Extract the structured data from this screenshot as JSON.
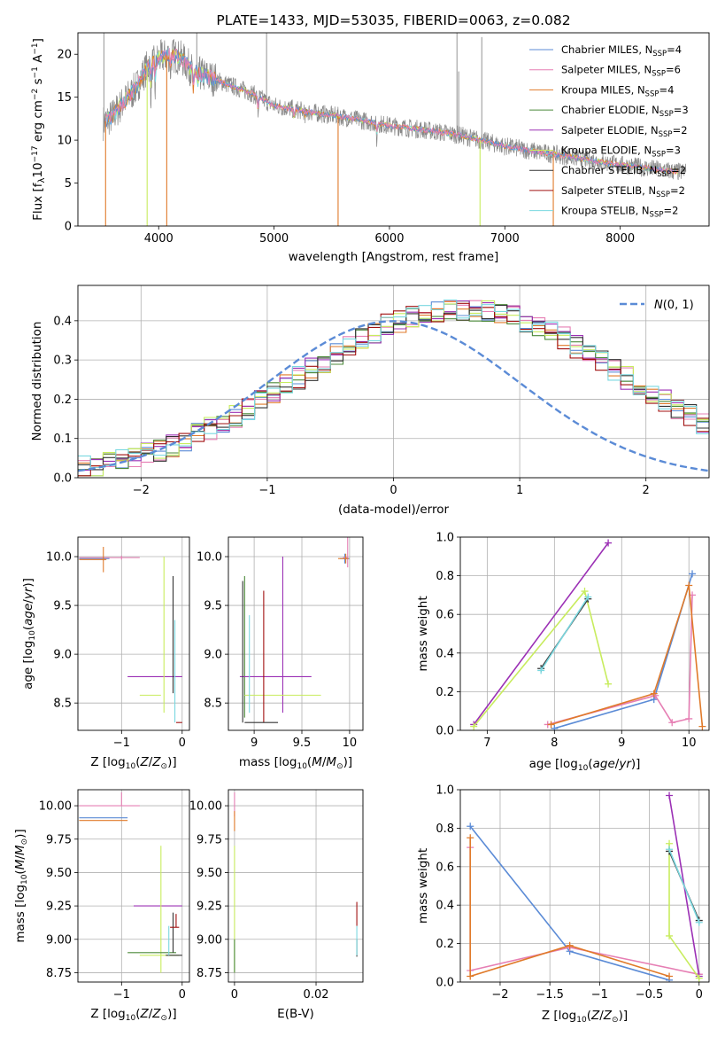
{
  "colors": {
    "chabrier_miles": "#5b8bd6",
    "salpeter_miles": "#e67fb4",
    "kroupa_miles": "#e07a2a",
    "chabrier_elodie": "#4c8a3a",
    "salpeter_elodie": "#9b30b5",
    "kroupa_elodie": "#c8ec5e",
    "chabrier_stelib": "#333333",
    "salpeter_stelib": "#a01010",
    "kroupa_stelib": "#7ad8e0",
    "data": "#888888",
    "normal": "#5b8bd6"
  },
  "chart_data": [
    {
      "id": "spectrum",
      "type": "line",
      "title": "PLATE=1433, MJD=53035, FIBERID=0063, z=0.082",
      "xlabel": "wavelength [Angstrom, rest frame]",
      "ylabel": "Flux [fλ10^-17 erg cm^-2 s^-1 A^-1]",
      "xlim": [
        3300,
        8770
      ],
      "ylim": [
        0,
        22.5
      ],
      "xticks": [
        4000,
        5000,
        6000,
        7000,
        8000
      ],
      "yticks": [
        0,
        5,
        10,
        15,
        20
      ],
      "legend_position": "top-right",
      "continuum": {
        "x": [
          3520,
          3600,
          3700,
          3800,
          3900,
          4000,
          4100,
          4200,
          4300,
          4500,
          4800,
          5000,
          5300,
          5600,
          6000,
          6300,
          6600,
          7000,
          7300,
          7600,
          7900,
          8200,
          8500
        ],
        "y": [
          12.0,
          12.8,
          14.5,
          16.0,
          18.5,
          19.5,
          20.0,
          19.5,
          18.0,
          17.0,
          15.5,
          14.0,
          13.3,
          12.7,
          11.7,
          11.2,
          10.6,
          9.3,
          8.6,
          8.0,
          7.3,
          6.8,
          6.3
        ]
      },
      "legend": [
        {
          "name": "Chabrier MILES",
          "nssp": "4",
          "color_key": "chabrier_miles"
        },
        {
          "name": "Salpeter MILES",
          "nssp": "6",
          "color_key": "salpeter_miles"
        },
        {
          "name": "Kroupa MILES",
          "nssp": "4",
          "color_key": "kroupa_miles"
        },
        {
          "name": "Chabrier ELODIE",
          "nssp": "3",
          "color_key": "chabrier_elodie"
        },
        {
          "name": "Salpeter ELODIE",
          "nssp": "2",
          "color_key": "salpeter_elodie"
        },
        {
          "name": "Kroupa ELODIE",
          "nssp": "3",
          "color_key": "kroupa_elodie"
        },
        {
          "name": "Chabrier STELIB",
          "nssp": "2",
          "color_key": "chabrier_stelib"
        },
        {
          "name": "Salpeter STELIB",
          "nssp": "2",
          "color_key": "salpeter_stelib"
        },
        {
          "name": "Kroupa STELIB",
          "nssp": "2",
          "color_key": "kroupa_stelib"
        }
      ]
    },
    {
      "id": "residuals",
      "type": "histogram",
      "xlabel": "(data-model)/error",
      "ylabel": "Normed distribution",
      "xlim": [
        -2.5,
        2.5
      ],
      "ylim": [
        0,
        0.49
      ],
      "xticks": [
        -2,
        -1,
        0,
        1,
        2
      ],
      "yticks": [
        0.0,
        0.1,
        0.2,
        0.3,
        0.4
      ],
      "grid": true,
      "normal_curve_label": "N(0,1)",
      "legend_position": "top-right",
      "bin_width": 0.1,
      "x_start": -2.5,
      "hist_base": [
        0.028,
        0.03,
        0.036,
        0.042,
        0.05,
        0.06,
        0.07,
        0.082,
        0.095,
        0.11,
        0.125,
        0.14,
        0.158,
        0.175,
        0.195,
        0.215,
        0.235,
        0.255,
        0.275,
        0.295,
        0.315,
        0.335,
        0.355,
        0.372,
        0.388,
        0.4,
        0.41,
        0.418,
        0.424,
        0.428,
        0.43,
        0.428,
        0.424,
        0.418,
        0.41,
        0.4,
        0.388,
        0.372,
        0.355,
        0.335,
        0.315,
        0.295,
        0.275,
        0.255,
        0.235,
        0.215,
        0.195,
        0.175,
        0.158,
        0.14,
        0.125,
        0.11,
        0.095,
        0.082,
        0.07,
        0.06,
        0.05,
        0.042,
        0.036,
        0.03
      ],
      "hist_base_note_units": "normed density per 0.1-wide bin from -2.5 to 2.5 (first 50 used)"
    },
    {
      "id": "age_vs_Z",
      "type": "errorbar",
      "xlabel": "Z [log10(Z/Z⊙)]",
      "ylabel": "age [log10(age/yr)]",
      "xlim": [
        -1.72,
        0.12
      ],
      "ylim": [
        8.22,
        10.2
      ],
      "xticks": [
        -1,
        0
      ],
      "yticks": [
        8.5,
        9.0,
        9.5,
        10.0
      ],
      "grid": true,
      "points": [
        {
          "color_key": "chabrier_miles",
          "x": -1.3,
          "y": 9.98,
          "xerr": [
            0.4,
            0.1
          ],
          "yerr": [
            0.02,
            0.02
          ]
        },
        {
          "color_key": "salpeter_miles",
          "x": -1.0,
          "y": 9.99,
          "xerr": [
            0.7,
            0.3
          ],
          "yerr": [
            0.02,
            0.02
          ]
        },
        {
          "color_key": "kroupa_miles",
          "x": -1.3,
          "y": 9.97,
          "xerr": [
            0.4,
            0.05
          ],
          "yerr": [
            0.13,
            0.13
          ]
        },
        {
          "color_key": "chabrier_elodie",
          "x": -0.3,
          "y": 8.58,
          "xerr": [
            0.0,
            0.0
          ],
          "yerr": [
            0.0,
            0.0
          ]
        },
        {
          "color_key": "salpeter_elodie",
          "x": -0.4,
          "y": 8.77,
          "xerr": [
            0.5,
            0.4
          ],
          "yerr": [
            0.0,
            0.0
          ]
        },
        {
          "color_key": "kroupa_elodie",
          "x": -0.7,
          "y": 8.58,
          "xerr": [
            0.0,
            0.35
          ],
          "yerr": [
            0.0,
            0.0
          ]
        },
        {
          "color_key": "kroupa_elodie",
          "x": -0.3,
          "y": 9.0,
          "xerr": [
            0.0,
            0.0
          ],
          "yerr": [
            0.6,
            1.0
          ]
        },
        {
          "color_key": "chabrier_stelib",
          "x": -0.15,
          "y": 9.2,
          "xerr": [
            0.0,
            0.0
          ],
          "yerr": [
            0.6,
            0.6
          ]
        },
        {
          "color_key": "kroupa_stelib",
          "x": -0.12,
          "y": 8.9,
          "xerr": [
            0.0,
            0.0
          ],
          "yerr": [
            0.6,
            0.45
          ]
        },
        {
          "color_key": "salpeter_stelib",
          "x": -0.05,
          "y": 8.3,
          "xerr": [
            0.05,
            0.05
          ],
          "yerr": [
            0.0,
            0.0
          ]
        }
      ]
    },
    {
      "id": "age_vs_mass",
      "type": "errorbar",
      "xlabel": "mass [log10(M/M⊙)]",
      "ylabel": "",
      "xlim": [
        8.73,
        10.14
      ],
      "ylim": [
        8.22,
        10.2
      ],
      "xticks": [
        9.0,
        9.5,
        10.0
      ],
      "yticks": [
        8.5,
        9.0,
        9.5,
        10.0
      ],
      "grid": true,
      "points": [
        {
          "color_key": "chabrier_miles",
          "x": 9.95,
          "y": 9.98,
          "xerr": [
            0.05,
            0.05
          ],
          "yerr": [
            0.05,
            0.05
          ]
        },
        {
          "color_key": "salpeter_miles",
          "x": 9.98,
          "y": 9.99,
          "xerr": [
            0.05,
            0.0
          ],
          "yerr": [
            0.1,
            0.22
          ]
        },
        {
          "color_key": "kroupa_miles",
          "x": 9.96,
          "y": 9.98,
          "xerr": [
            0.08,
            0.03
          ],
          "yerr": [
            0.05,
            0.05
          ]
        },
        {
          "color_key": "chabrier_elodie",
          "x": 8.9,
          "y": 9.0,
          "xerr": [
            0.0,
            0.0
          ],
          "yerr": [
            0.65,
            0.8
          ]
        },
        {
          "color_key": "salpeter_elodie",
          "x": 9.1,
          "y": 8.77,
          "xerr": [
            0.25,
            0.5
          ],
          "yerr": [
            0.0,
            0.0
          ]
        },
        {
          "color_key": "salpeter_elodie",
          "x": 9.3,
          "y": 9.5,
          "xerr": [
            0.0,
            0.0
          ],
          "yerr": [
            1.1,
            0.5
          ]
        },
        {
          "color_key": "kroupa_elodie",
          "x": 9.2,
          "y": 8.58,
          "xerr": [
            0.3,
            0.5
          ],
          "yerr": [
            0.0,
            0.0
          ]
        },
        {
          "color_key": "chabrier_stelib",
          "x": 8.88,
          "y": 9.0,
          "xerr": [
            0.0,
            0.0
          ],
          "yerr": [
            0.7,
            0.75
          ]
        },
        {
          "color_key": "salpeter_stelib",
          "x": 9.1,
          "y": 9.0,
          "xerr": [
            0.0,
            0.0
          ],
          "yerr": [
            0.7,
            0.65
          ]
        },
        {
          "color_key": "chabrier_stelib",
          "x": 9.1,
          "y": 8.3,
          "xerr": [
            0.2,
            0.15
          ],
          "yerr": [
            0.0,
            0.0
          ]
        },
        {
          "color_key": "kroupa_stelib",
          "x": 8.95,
          "y": 9.0,
          "xerr": [
            0.0,
            0.0
          ],
          "yerr": [
            0.6,
            0.4
          ]
        }
      ]
    },
    {
      "id": "weight_vs_age",
      "type": "line",
      "xlabel": "age [log10(age/yr)]",
      "ylabel": "mass weight",
      "xlim": [
        6.6,
        10.3
      ],
      "ylim": [
        0.0,
        1.0
      ],
      "xticks": [
        7,
        8,
        9,
        10
      ],
      "yticks": [
        0.0,
        0.2,
        0.4,
        0.6,
        0.8,
        1.0
      ],
      "grid": true,
      "series": [
        {
          "color_key": "chabrier_miles",
          "x": [
            8.0,
            9.48,
            10.05
          ],
          "y": [
            0.01,
            0.16,
            0.81
          ]
        },
        {
          "color_key": "salpeter_miles",
          "x": [
            7.9,
            9.5,
            9.75,
            10.0,
            10.05
          ],
          "y": [
            0.03,
            0.18,
            0.04,
            0.06,
            0.7
          ]
        },
        {
          "color_key": "kroupa_miles",
          "x": [
            7.95,
            9.48,
            10.0,
            10.2
          ],
          "y": [
            0.03,
            0.19,
            0.75,
            0.02
          ]
        },
        {
          "color_key": "salpeter_elodie",
          "x": [
            6.8,
            8.8
          ],
          "y": [
            0.03,
            0.97
          ]
        },
        {
          "color_key": "kroupa_elodie",
          "x": [
            6.8,
            8.45,
            8.8
          ],
          "y": [
            0.02,
            0.72,
            0.24
          ]
        },
        {
          "color_key": "chabrier_stelib",
          "x": [
            7.8,
            8.5
          ],
          "y": [
            0.32,
            0.68
          ]
        },
        {
          "color_key": "kroupa_stelib",
          "x": [
            7.8,
            8.5
          ],
          "y": [
            0.31,
            0.69
          ]
        }
      ]
    },
    {
      "id": "mass_vs_Z",
      "type": "errorbar",
      "xlabel": "Z [log10(Z/Z⊙)]",
      "ylabel": "mass [log10(M/M⊙)]",
      "xlim": [
        -1.72,
        0.12
      ],
      "ylim": [
        8.68,
        10.12
      ],
      "xticks": [
        -1,
        0
      ],
      "yticks": [
        8.75,
        9.0,
        9.25,
        9.5,
        9.75,
        10.0
      ],
      "grid": true,
      "points": [
        {
          "color_key": "chabrier_miles",
          "x": -1.3,
          "y": 9.91,
          "xerr": [
            0.4,
            0.4
          ],
          "yerr": [
            0.0,
            0.0
          ]
        },
        {
          "color_key": "salpeter_miles",
          "x": -1.0,
          "y": 10.0,
          "xerr": [
            0.7,
            0.3
          ],
          "yerr": [
            0.0,
            0.1
          ]
        },
        {
          "color_key": "kroupa_miles",
          "x": -1.3,
          "y": 9.89,
          "xerr": [
            0.4,
            0.4
          ],
          "yerr": [
            0.0,
            0.0
          ]
        },
        {
          "color_key": "salpeter_elodie",
          "x": -0.3,
          "y": 9.25,
          "xerr": [
            0.5,
            0.3
          ],
          "yerr": [
            0.0,
            0.0
          ]
        },
        {
          "color_key": "kroupa_elodie",
          "x": -0.35,
          "y": 9.25,
          "xerr": [
            0.0,
            0.0
          ],
          "yerr": [
            0.5,
            0.45
          ]
        },
        {
          "color_key": "chabrier_elodie",
          "x": -0.4,
          "y": 8.9,
          "xerr": [
            0.5,
            0.3
          ],
          "yerr": [
            0.0,
            0.0
          ]
        },
        {
          "color_key": "kroupa_elodie",
          "x": -0.4,
          "y": 8.88,
          "xerr": [
            0.3,
            0.35
          ],
          "yerr": [
            0.0,
            0.0
          ]
        },
        {
          "color_key": "chabrier_stelib",
          "x": -0.12,
          "y": 8.88,
          "xerr": [
            0.15,
            0.12
          ],
          "yerr": [
            0.0,
            0.0
          ]
        },
        {
          "color_key": "chabrier_stelib",
          "x": -0.15,
          "y": 9.05,
          "xerr": [
            0.0,
            0.0
          ],
          "yerr": [
            0.15,
            0.15
          ]
        },
        {
          "color_key": "salpeter_stelib",
          "x": -0.1,
          "y": 9.09,
          "xerr": [
            0.1,
            0.05
          ],
          "yerr": [
            0.0,
            0.1
          ]
        },
        {
          "color_key": "kroupa_stelib",
          "x": -0.22,
          "y": 9.0,
          "xerr": [
            0.0,
            0.0
          ],
          "yerr": [
            0.12,
            0.1
          ]
        }
      ]
    },
    {
      "id": "mass_vs_ebv",
      "type": "errorbar",
      "xlabel": "E(B-V)",
      "ylabel": "",
      "xlim": [
        -0.0015,
        0.0315
      ],
      "ylim": [
        8.68,
        10.12
      ],
      "xticks": [
        0.0,
        0.02
      ],
      "yticks": [
        8.75,
        9.0,
        9.25,
        9.5,
        9.75,
        10.0
      ],
      "grid": true,
      "points": [
        {
          "color_key": "salpeter_miles",
          "x": 0.0,
          "y": 10.0,
          "xerr": [
            0,
            0
          ],
          "yerr": [
            0.08,
            0.1
          ]
        },
        {
          "color_key": "kroupa_miles",
          "x": 0.0,
          "y": 9.91,
          "xerr": [
            0,
            0
          ],
          "yerr": [
            0.1,
            0.05
          ]
        },
        {
          "color_key": "kroupa_elodie",
          "x": 0.0,
          "y": 9.25,
          "xerr": [
            0,
            0
          ],
          "yerr": [
            0.5,
            0.45
          ]
        },
        {
          "color_key": "chabrier_elodie",
          "x": 0.0,
          "y": 8.9,
          "xerr": [
            0,
            0
          ],
          "yerr": [
            0.15,
            0.1
          ]
        },
        {
          "color_key": "chabrier_stelib",
          "x": 0.03,
          "y": 8.95,
          "xerr": [
            0,
            0
          ],
          "yerr": [
            0.08,
            0.05
          ]
        },
        {
          "color_key": "salpeter_stelib",
          "x": 0.03,
          "y": 9.2,
          "xerr": [
            0,
            0
          ],
          "yerr": [
            0.1,
            0.08
          ]
        },
        {
          "color_key": "kroupa_stelib",
          "x": 0.03,
          "y": 9.0,
          "xerr": [
            0,
            0
          ],
          "yerr": [
            0.12,
            0.1
          ]
        }
      ]
    },
    {
      "id": "weight_vs_Z",
      "type": "line",
      "xlabel": "Z [log10(Z/Z⊙)]",
      "ylabel": "mass weight",
      "xlim": [
        -2.4,
        0.1
      ],
      "ylim": [
        0.0,
        1.0
      ],
      "xticks": [
        -2.0,
        -1.5,
        -1.0,
        -0.5,
        0.0
      ],
      "yticks": [
        0.0,
        0.2,
        0.4,
        0.6,
        0.8,
        1.0
      ],
      "grid": true,
      "series": [
        {
          "color_key": "chabrier_miles",
          "x": [
            -2.3,
            -1.3,
            -0.3
          ],
          "y": [
            0.81,
            0.16,
            0.01
          ]
        },
        {
          "color_key": "salpeter_miles",
          "x": [
            -2.3,
            -2.3,
            -1.3,
            0.0,
            0.0
          ],
          "y": [
            0.7,
            0.06,
            0.18,
            0.04,
            0.04
          ]
        },
        {
          "color_key": "kroupa_miles",
          "x": [
            -2.3,
            -2.3,
            -1.3,
            -0.3
          ],
          "y": [
            0.75,
            0.03,
            0.19,
            0.03
          ]
        },
        {
          "color_key": "salpeter_elodie",
          "x": [
            -0.3,
            0.0
          ],
          "y": [
            0.97,
            0.03
          ]
        },
        {
          "color_key": "kroupa_elodie",
          "x": [
            -0.3,
            -0.3,
            0.0
          ],
          "y": [
            0.72,
            0.24,
            0.02
          ]
        },
        {
          "color_key": "chabrier_stelib",
          "x": [
            -0.3,
            0.0
          ],
          "y": [
            0.68,
            0.32
          ]
        },
        {
          "color_key": "kroupa_stelib",
          "x": [
            -0.3,
            0.0
          ],
          "y": [
            0.69,
            0.31
          ]
        }
      ]
    }
  ]
}
